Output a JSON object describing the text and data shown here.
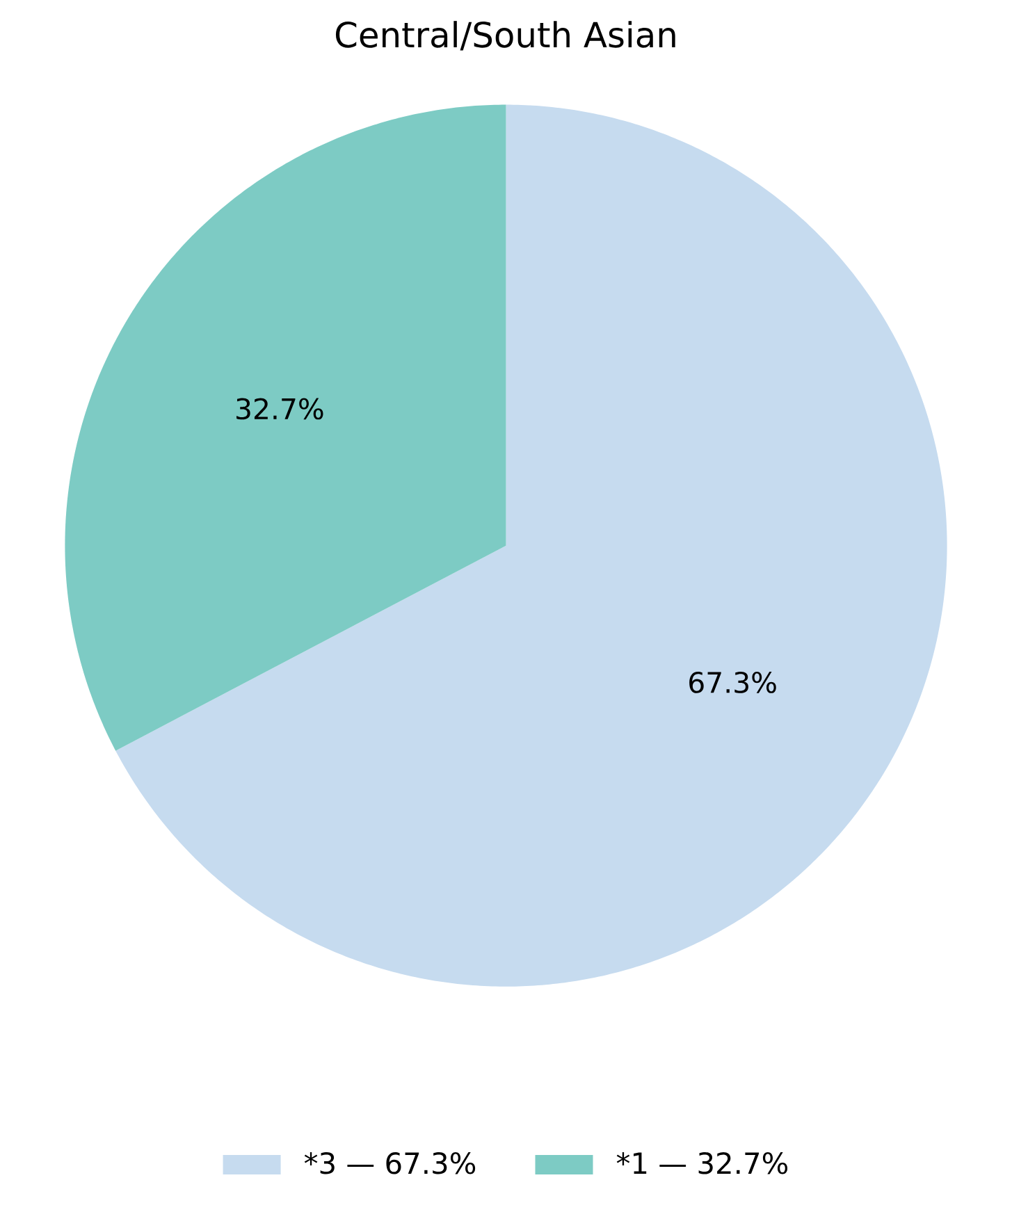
{
  "chart_data": {
    "type": "pie",
    "title": "Central/South Asian",
    "categories": [
      "*3 — 67.3%",
      "*1 — 32.7%"
    ],
    "values": [
      67.3,
      32.7
    ],
    "colors": [
      "#c6dbef",
      "#7dcbc4"
    ],
    "value_labels": [
      "67.3%",
      "32.7%"
    ],
    "legend": "bottom"
  }
}
